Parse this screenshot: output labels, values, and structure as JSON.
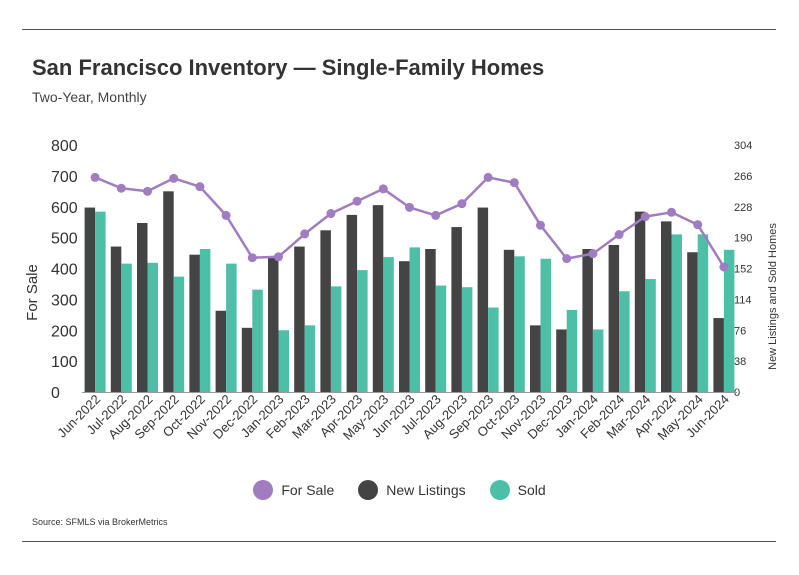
{
  "header": {
    "title": "San Francisco Inventory — Single-Family Homes",
    "subtitle": "Two-Year, Monthly"
  },
  "source": "Source:  SFMLS via BrokerMetrics",
  "colors": {
    "for_sale": "#A07CC0",
    "new_listings": "#444444",
    "sold": "#4DBFA7"
  },
  "legend": {
    "for_sale": "For Sale",
    "new_listings": "New Listings",
    "sold": "Sold"
  },
  "chart_data": {
    "type": "bar",
    "categories": [
      "Jun-2022",
      "Jul-2022",
      "Aug-2022",
      "Sep-2022",
      "Oct-2022",
      "Nov-2022",
      "Dec-2022",
      "Jan-2023",
      "Feb-2023",
      "Mar-2023",
      "Apr-2023",
      "May-2023",
      "Jun-2023",
      "Jul-2023",
      "Aug-2023",
      "Sep-2023",
      "Oct-2023",
      "Nov-2023",
      "Dec-2023",
      "Jan-2024",
      "Feb-2024",
      "Mar-2024",
      "Apr-2024",
      "May-2024",
      "Jun-2024"
    ],
    "ylabel": "For Sale",
    "y2label": "New Listings and Sold Homes",
    "ylim": [
      0,
      800
    ],
    "y2lim": [
      0,
      304
    ],
    "yticks": [
      0,
      100,
      200,
      300,
      400,
      500,
      600,
      700,
      800
    ],
    "y2ticks": [
      0,
      38,
      76,
      114,
      152,
      190,
      228,
      266,
      304
    ],
    "legend_position": "bottom",
    "grid": false,
    "series": [
      {
        "name": "For Sale",
        "type": "line",
        "axis": "left",
        "values": [
          695,
          660,
          650,
          692,
          665,
          572,
          435,
          438,
          512,
          578,
          618,
          658,
          598,
          572,
          610,
          695,
          678,
          540,
          432,
          448,
          510,
          568,
          582,
          542,
          405
        ]
      },
      {
        "name": "New Listings",
        "type": "bar",
        "axis": "right",
        "values": [
          227,
          179,
          208,
          247,
          169,
          100,
          79,
          167,
          179,
          199,
          218,
          230,
          161,
          176,
          203,
          227,
          175,
          82,
          77,
          176,
          181,
          222,
          210,
          172,
          91
        ]
      },
      {
        "name": "Sold",
        "type": "bar",
        "axis": "right",
        "values": [
          222,
          158,
          159,
          142,
          176,
          158,
          126,
          76,
          82,
          130,
          150,
          166,
          178,
          131,
          129,
          104,
          167,
          164,
          101,
          77,
          124,
          139,
          194,
          194,
          175
        ]
      }
    ]
  }
}
